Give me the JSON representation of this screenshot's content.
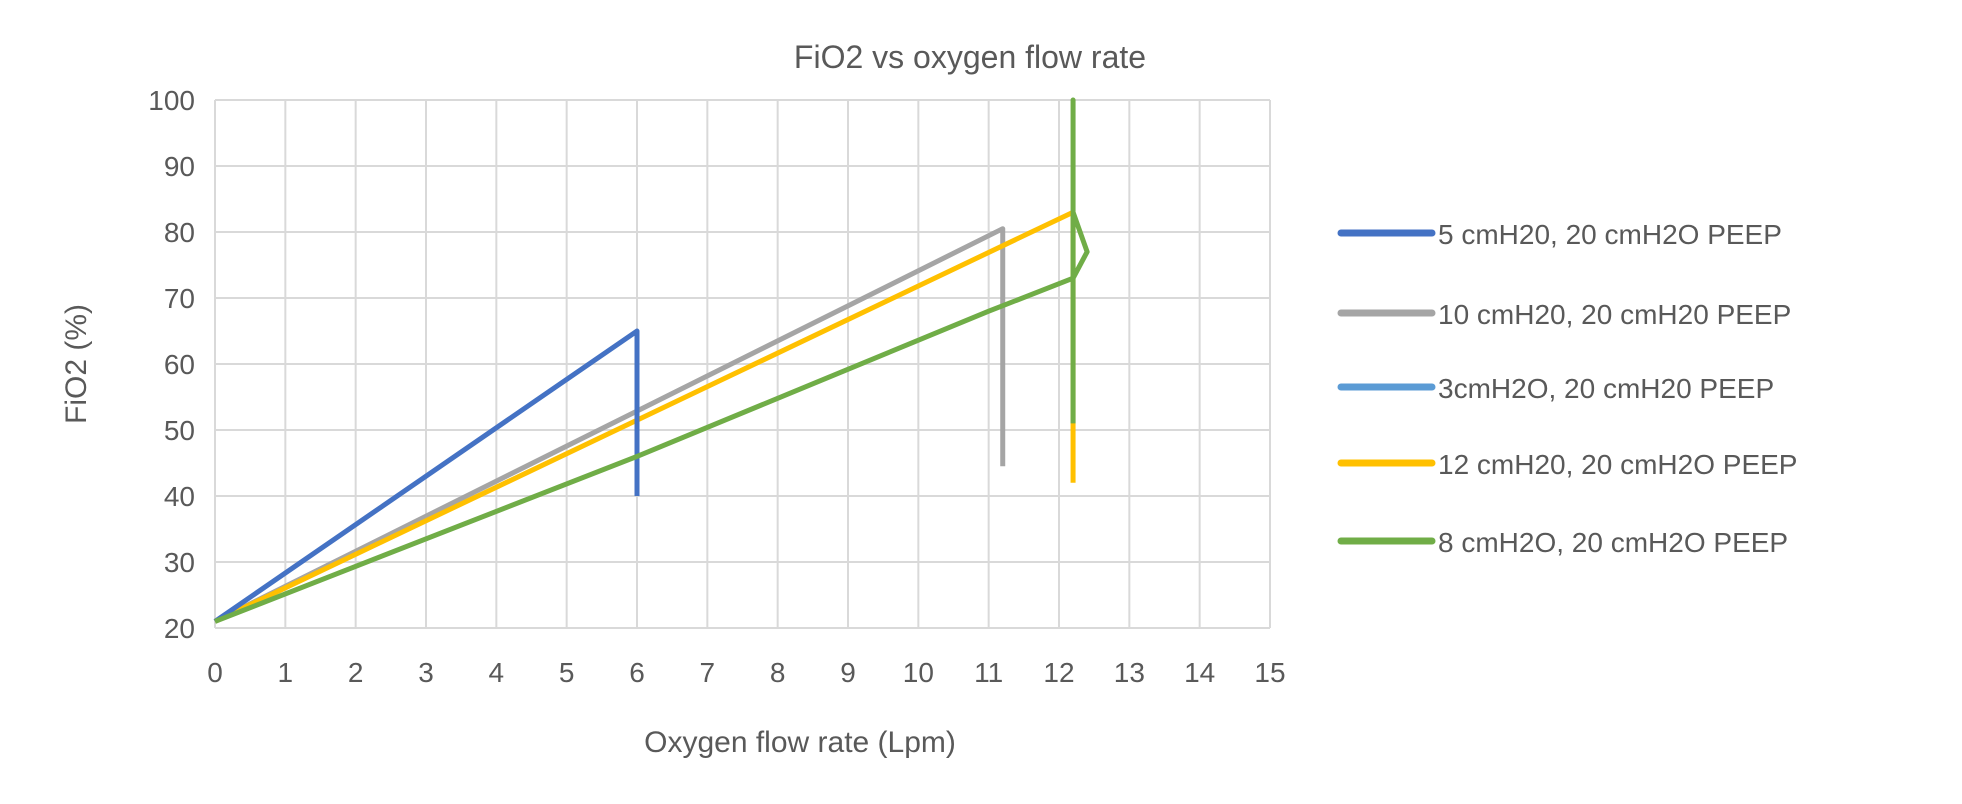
{
  "chart_data": {
    "type": "line",
    "title": "FiO2 vs oxygen flow rate",
    "xlabel": "Oxygen flow rate (Lpm)",
    "ylabel": "FiO2 (%)",
    "xlim": [
      0,
      15
    ],
    "ylim": [
      20,
      100
    ],
    "xticks": [
      0,
      1,
      2,
      3,
      4,
      5,
      6,
      7,
      8,
      9,
      10,
      11,
      12,
      13,
      14,
      15
    ],
    "yticks": [
      20,
      30,
      40,
      50,
      60,
      70,
      80,
      90,
      100
    ],
    "grid": true,
    "legend_position": "right",
    "series": [
      {
        "name": "5 cmH20, 20 cmH2O PEEP",
        "color": "#4472C4",
        "points": [
          [
            0,
            21
          ],
          [
            6,
            65
          ],
          [
            6,
            40
          ]
        ]
      },
      {
        "name": "10 cmH20, 20 cmH20 PEEP",
        "color": "#A5A5A5",
        "points": [
          [
            0,
            21
          ],
          [
            11.2,
            80.5
          ],
          [
            11.2,
            44.5
          ]
        ]
      },
      {
        "name": "3cmH2O, 20 cmH20 PEEP",
        "color": "#5B9BD5",
        "points": []
      },
      {
        "name": "12 cmH20, 20 cmH2O PEEP",
        "color": "#FFC000",
        "points": [
          [
            0,
            21
          ],
          [
            12.2,
            83
          ],
          [
            12.2,
            42
          ]
        ]
      },
      {
        "name": "8 cmH2O, 20 cmH2O PEEP",
        "color": "#70AD47",
        "points": [
          [
            0,
            21
          ],
          [
            6,
            46
          ],
          [
            11,
            68
          ],
          [
            12.2,
            73
          ],
          [
            12.4,
            77
          ],
          [
            12.2,
            83
          ],
          [
            12.2,
            100
          ],
          [
            12.2,
            51
          ]
        ]
      }
    ]
  }
}
